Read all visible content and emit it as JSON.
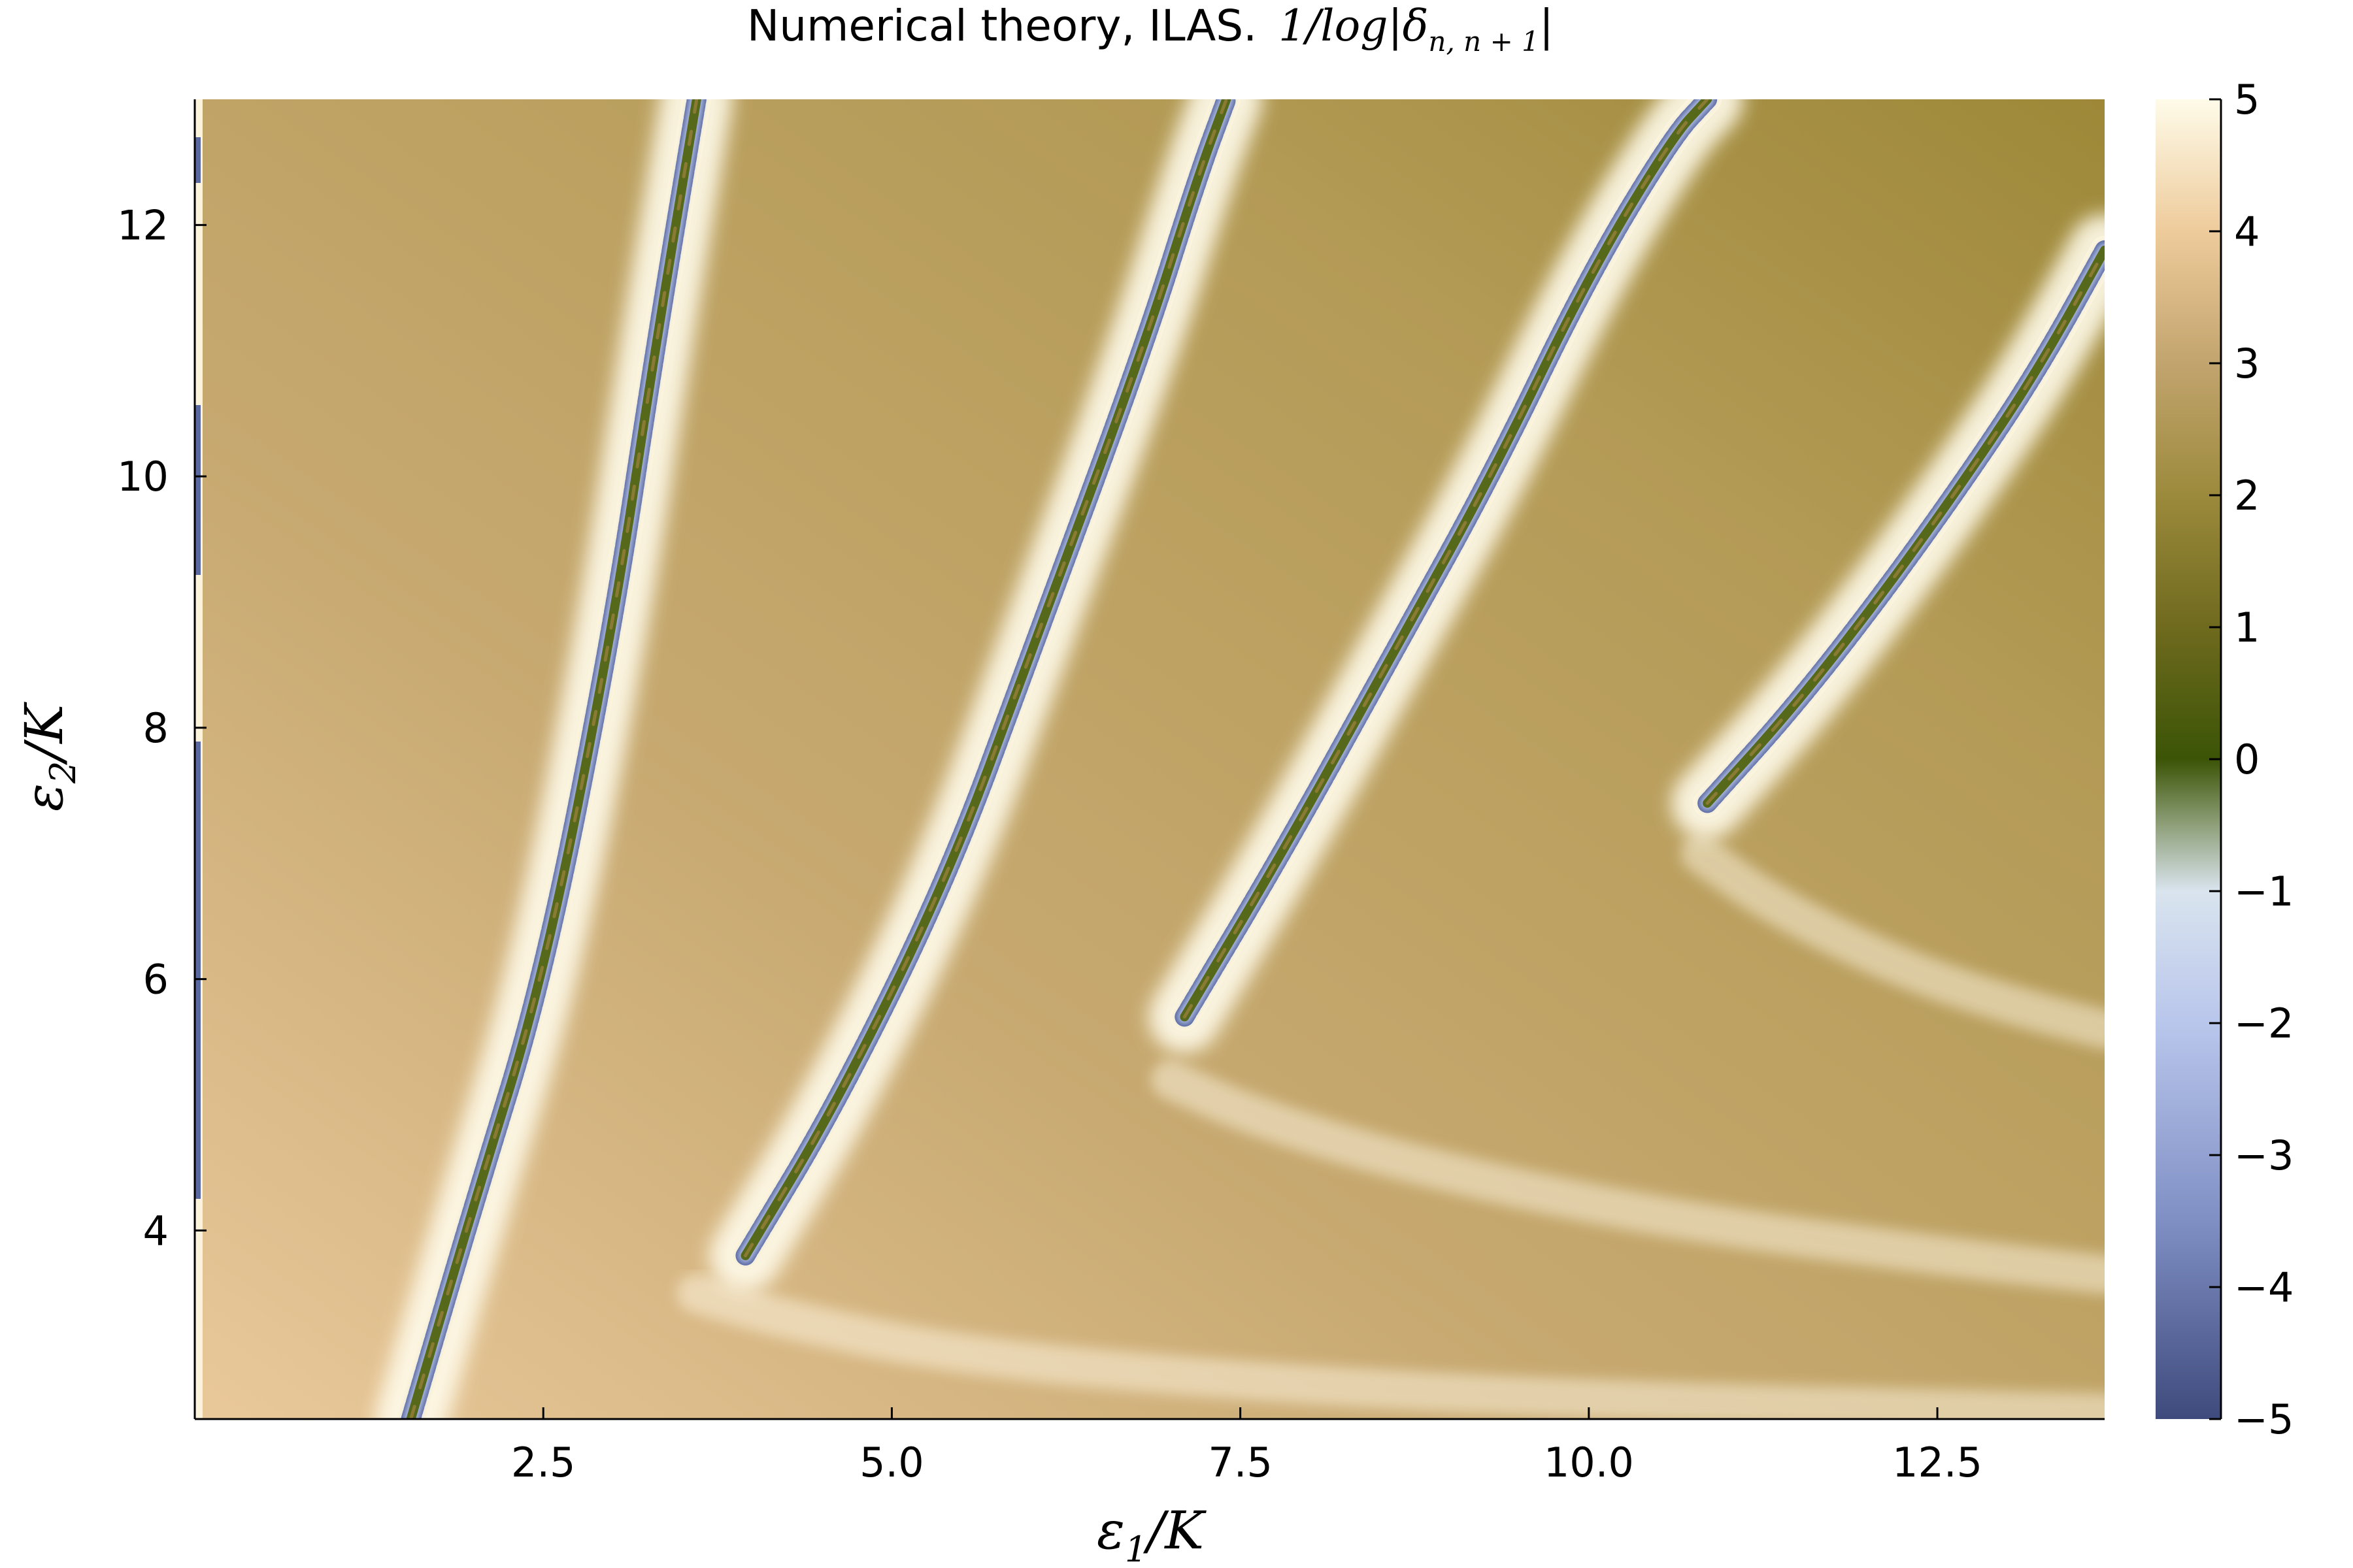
{
  "chart_data": {
    "type": "heatmap",
    "title_text": "Numerical theory, ILAS.",
    "title_math": "1/log|δ",
    "title_sub": "n, n + 1",
    "title_close": "|",
    "xlabel_main": "ε",
    "xlabel_sub": "1",
    "xlabel_tail": "/K",
    "ylabel_main": "ε",
    "ylabel_sub": "2",
    "ylabel_tail": "/K",
    "xlim": [
      0.0,
      13.7
    ],
    "ylim": [
      2.5,
      13.0
    ],
    "x_ticks": [
      {
        "value": 2.5,
        "label": "2.5"
      },
      {
        "value": 5.0,
        "label": "5.0"
      },
      {
        "value": 7.5,
        "label": "7.5"
      },
      {
        "value": 10.0,
        "label": "10.0"
      },
      {
        "value": 12.5,
        "label": "12.5"
      }
    ],
    "y_ticks": [
      {
        "value": 4,
        "label": "4"
      },
      {
        "value": 6,
        "label": "6"
      },
      {
        "value": 8,
        "label": "8"
      },
      {
        "value": 10,
        "label": "10"
      },
      {
        "value": 12,
        "label": "12"
      }
    ],
    "colorbar": {
      "range": [
        -5,
        5
      ],
      "ticks": [
        {
          "value": 5,
          "label": "5"
        },
        {
          "value": 4,
          "label": "4"
        },
        {
          "value": 3,
          "label": "3"
        },
        {
          "value": 2,
          "label": "2"
        },
        {
          "value": 1,
          "label": "1"
        },
        {
          "value": 0,
          "label": "0"
        },
        {
          "value": -1,
          "label": "−1"
        },
        {
          "value": -2,
          "label": "−2"
        },
        {
          "value": -3,
          "label": "−3"
        },
        {
          "value": -4,
          "label": "−4"
        },
        {
          "value": -5,
          "label": "−5"
        }
      ],
      "stops": [
        {
          "value": -5,
          "color": "#3f4a7c"
        },
        {
          "value": -3.5,
          "color": "#7f8fc4"
        },
        {
          "value": -2,
          "color": "#b9c6ec"
        },
        {
          "value": -1,
          "color": "#d9e4ee"
        },
        {
          "value": -0.5,
          "color": "#8fa07a"
        },
        {
          "value": 0,
          "color": "#3b5406"
        },
        {
          "value": 1,
          "color": "#6f6a1e"
        },
        {
          "value": 2,
          "color": "#9c8a3c"
        },
        {
          "value": 3,
          "color": "#c2a46e"
        },
        {
          "value": 4,
          "color": "#eecb9b"
        },
        {
          "value": 5,
          "color": "#fefbe9"
        }
      ]
    },
    "background_color": "#b39a55",
    "ridges": [
      {
        "x": [
          1.55,
          2.0,
          2.5,
          3.0,
          3.3,
          3.6
        ],
        "y": [
          2.5,
          4.2,
          6.0,
          8.8,
          11.0,
          13.0
        ],
        "core_from": 2.5
      },
      {
        "x": [
          3.95,
          4.6,
          5.4,
          6.0,
          6.8,
          7.2,
          7.4
        ],
        "y": [
          3.8,
          5.0,
          6.8,
          8.6,
          11.0,
          12.4,
          13.0
        ],
        "core_from": 3.8
      },
      {
        "x": [
          7.1,
          7.8,
          8.6,
          9.3,
          10.0,
          10.6,
          10.85
        ],
        "y": [
          5.7,
          7.0,
          8.6,
          10.0,
          11.6,
          12.7,
          13.0
        ],
        "core_from": 5.7
      },
      {
        "x": [
          10.85,
          11.5,
          12.2,
          12.9,
          13.3,
          13.7
        ],
        "y": [
          7.4,
          8.2,
          9.2,
          10.3,
          11.0,
          11.8
        ],
        "core_from": 7.4
      }
    ],
    "faint_arcs": [
      {
        "x": [
          3.6,
          4.2,
          5.5,
          7.5,
          10.0,
          13.7
        ],
        "y": [
          3.5,
          3.3,
          3.0,
          2.8,
          2.65,
          2.55
        ]
      },
      {
        "x": [
          7.0,
          7.6,
          8.8,
          10.5,
          12.5,
          13.7
        ],
        "y": [
          5.2,
          4.9,
          4.5,
          4.1,
          3.8,
          3.65
        ]
      },
      {
        "x": [
          10.8,
          11.3,
          12.2,
          13.0,
          13.7
        ],
        "y": [
          7.0,
          6.6,
          6.1,
          5.8,
          5.6
        ]
      }
    ]
  }
}
